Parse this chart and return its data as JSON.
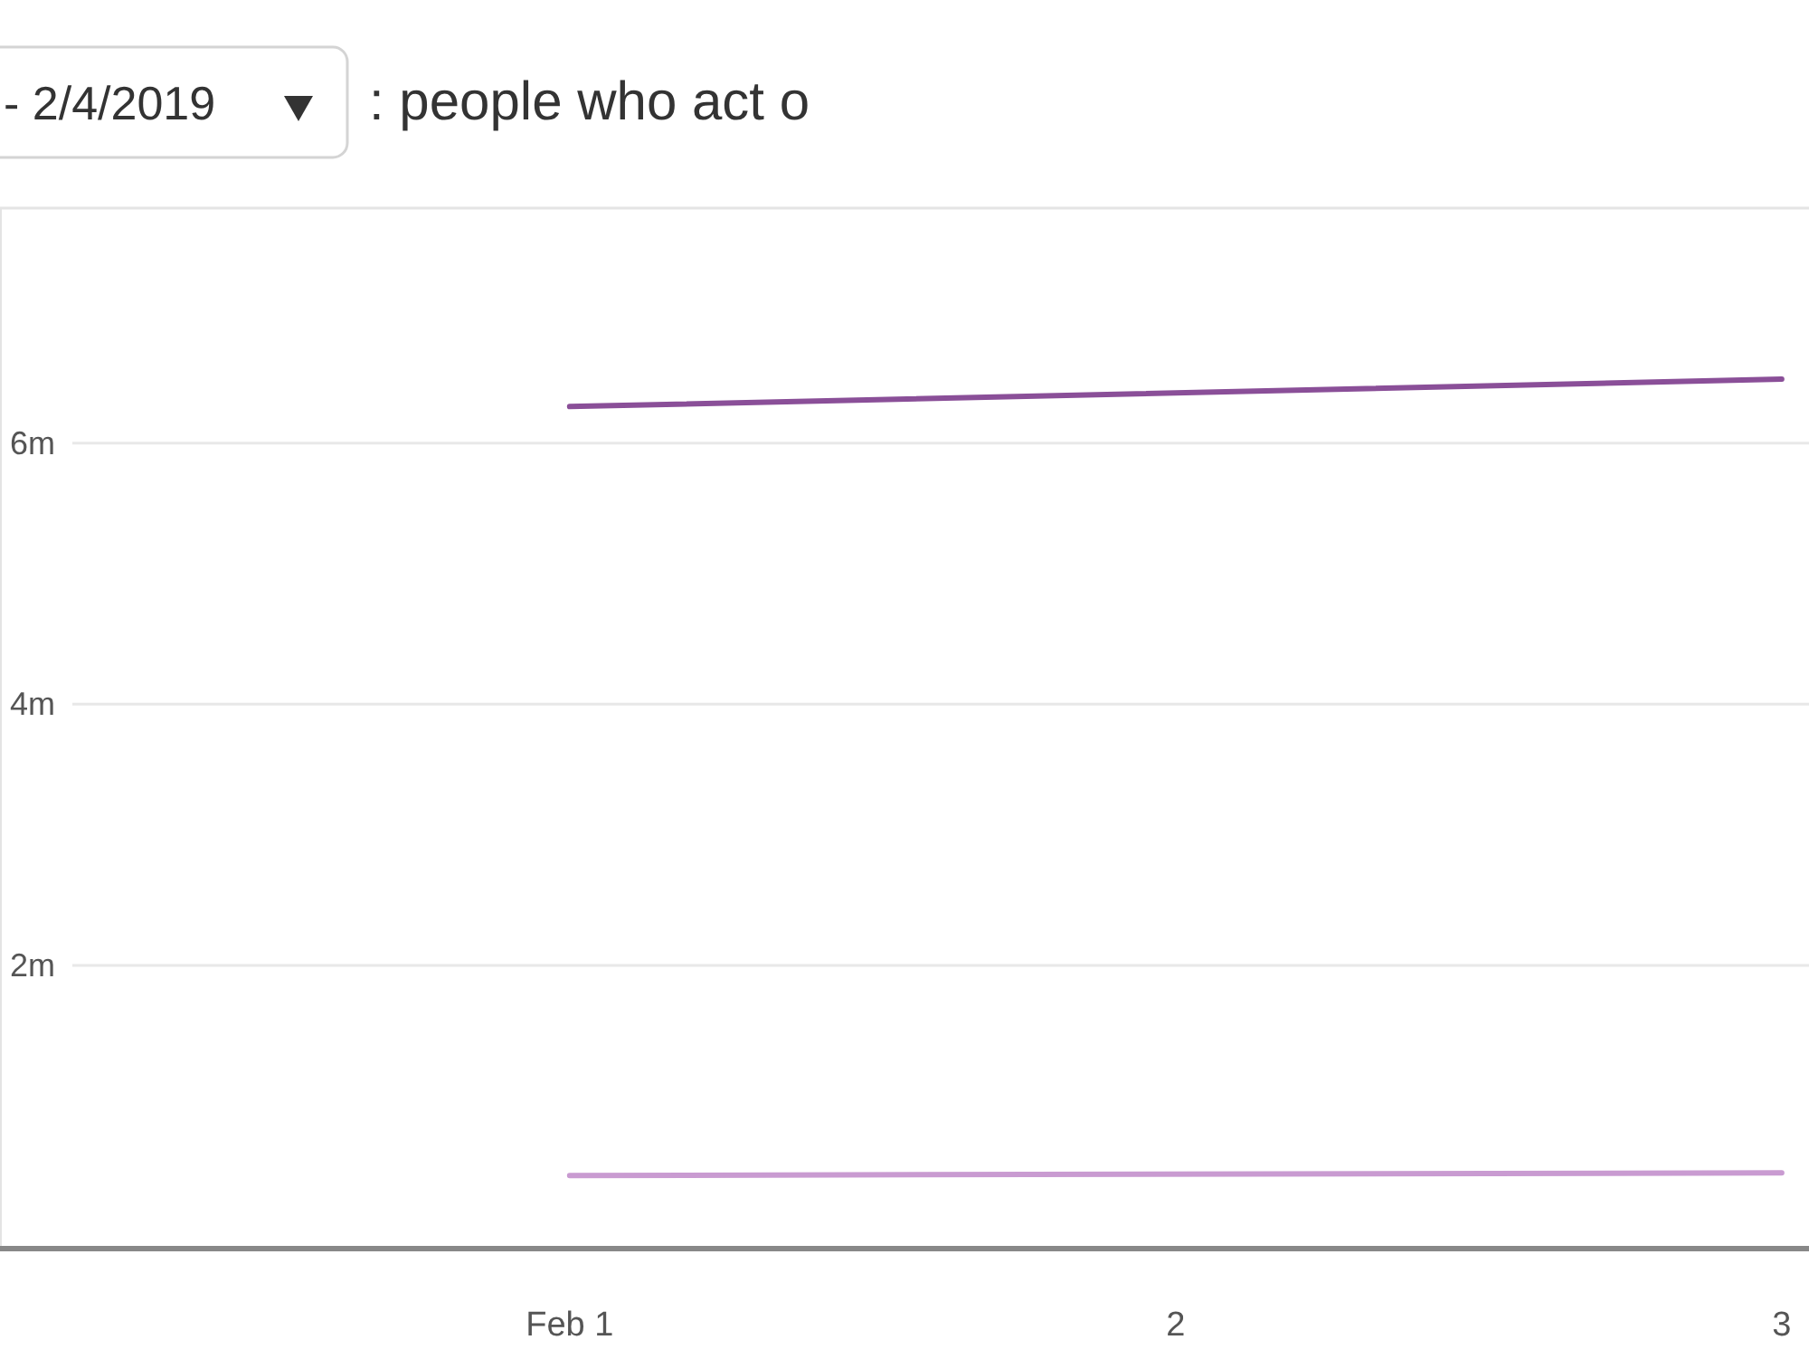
{
  "chart_data": {
    "type": "line",
    "title": ": people who act o",
    "annotations": [
      "- 2/4/2019"
    ],
    "x": [
      1,
      3
    ],
    "xlim": [
      0.06,
      3.045
    ],
    "xticks": [
      {
        "value": 1,
        "label": "Feb 1"
      },
      2,
      3
    ],
    "ylim": [
      -0.17,
      7.8
    ],
    "yticks": [
      {
        "value": 2,
        "label": "2m"
      },
      {
        "value": 4,
        "label": "4m"
      },
      {
        "value": 6,
        "label": "6m"
      }
    ],
    "grid": "y",
    "series": [
      {
        "color": "#8a4f98",
        "values": [
          6.28,
          6.49
        ]
      },
      {
        "color": "#c99bd1",
        "values": [
          0.39,
          0.41
        ]
      }
    ]
  }
}
